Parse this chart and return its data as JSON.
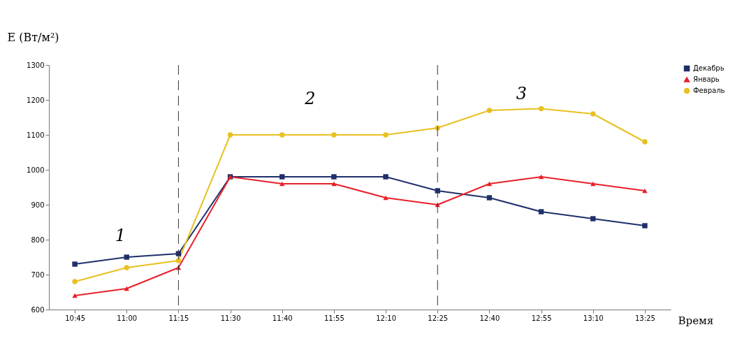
{
  "chart_data": {
    "type": "line",
    "ylabel": "E (Вт/м²)",
    "xlabel": "Время",
    "categories": [
      "10:45",
      "11:00",
      "11:15",
      "11:30",
      "11:40",
      "11:55",
      "12:10",
      "12:25",
      "12:40",
      "12:55",
      "13:10",
      "13:25"
    ],
    "series": [
      {
        "name": "Декабрь",
        "color": "#1f2f6b",
        "marker": "square",
        "values": [
          730,
          750,
          760,
          980,
          980,
          980,
          980,
          940,
          920,
          880,
          860,
          840
        ]
      },
      {
        "name": "Январь",
        "color": "#e8202a",
        "marker": "triangle",
        "values": [
          640,
          660,
          720,
          980,
          960,
          960,
          920,
          900,
          960,
          980,
          960,
          940
        ]
      },
      {
        "name": "Февраль",
        "color": "#e8c020",
        "marker": "circle",
        "values": [
          680,
          720,
          740,
          1100,
          1100,
          1100,
          1100,
          1120,
          1170,
          1175,
          1160,
          1080
        ]
      }
    ],
    "ylim": [
      600,
      1300
    ],
    "yticks": [
      600,
      700,
      800,
      900,
      1000,
      1100,
      1200,
      1300
    ],
    "grid": false,
    "legend": "right",
    "ref_lines": [
      {
        "axis": "x",
        "value": "11:15",
        "line_style": "dashed",
        "color": "#333333"
      },
      {
        "axis": "x",
        "value": "12:25",
        "line_style": "dashed",
        "color": "#333333"
      }
    ],
    "annotations": [
      "1",
      "2",
      "3"
    ]
  }
}
